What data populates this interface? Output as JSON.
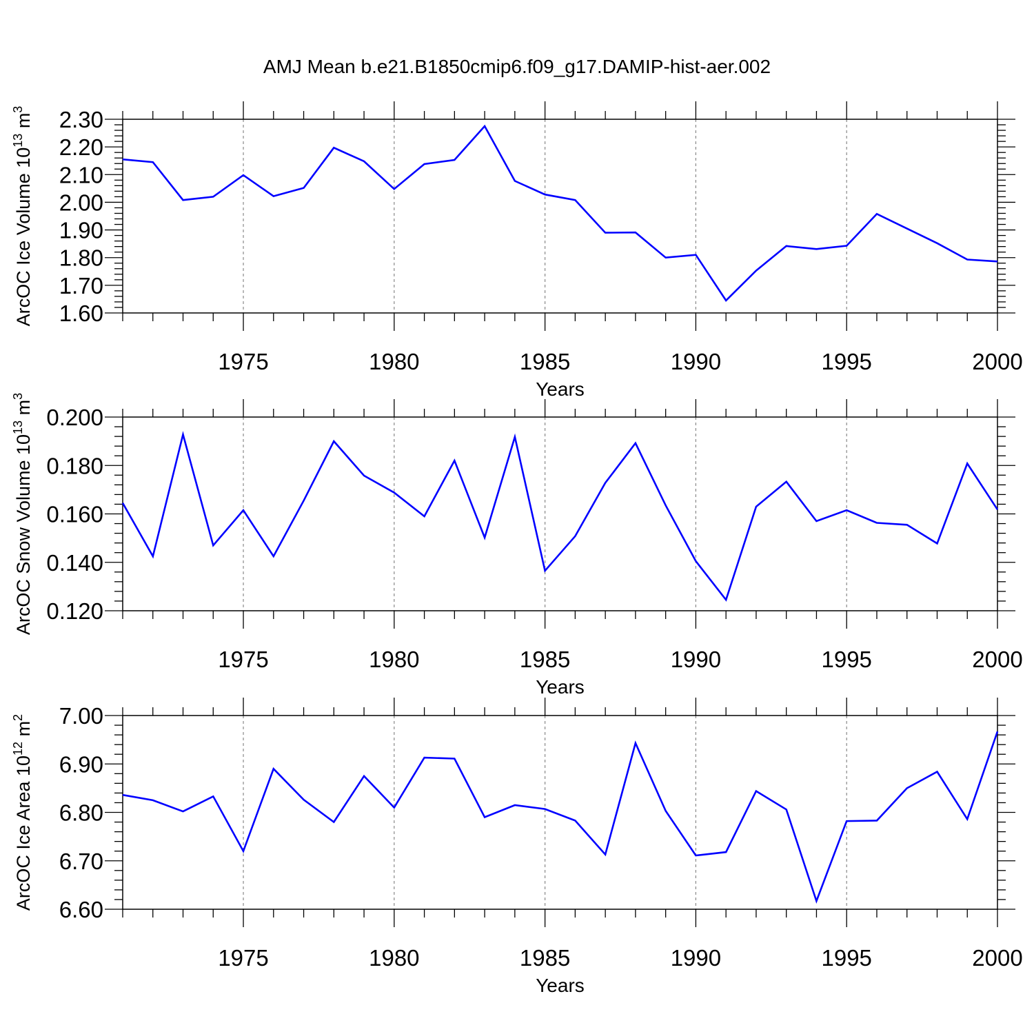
{
  "chart_data": {
    "title": "AMJ Mean b.e21.B1850cmip6.f09_g17.DAMIP-hist-aer.002",
    "x": [
      1971,
      1972,
      1973,
      1974,
      1975,
      1976,
      1977,
      1978,
      1979,
      1980,
      1981,
      1982,
      1983,
      1984,
      1985,
      1986,
      1987,
      1988,
      1989,
      1990,
      1991,
      1992,
      1993,
      1994,
      1995,
      1996,
      1997,
      1998,
      1999,
      2000
    ],
    "xlim": [
      1971,
      2000
    ],
    "xticks": [
      1975,
      1980,
      1985,
      1990,
      1995,
      2000
    ],
    "xtick_labels": [
      "1975",
      "1980",
      "1985",
      "1990",
      "1995",
      "2000"
    ],
    "colors": {
      "line": "#0000ff",
      "grid": "#888888",
      "axis": "#000000"
    },
    "panels": [
      {
        "type": "line",
        "xlabel": "Years",
        "ylabel_text": "ArcOC Ice Volume 10",
        "ylabel_exp": "13",
        "ylabel_unit": " m",
        "ylabel_unit_exp": "3",
        "ylim": [
          1.6,
          2.3
        ],
        "yticks": [
          1.6,
          1.7,
          1.8,
          1.9,
          2.0,
          2.1,
          2.2,
          2.3
        ],
        "ytick_labels": [
          "1.60",
          "1.70",
          "1.80",
          "1.90",
          "2.00",
          "2.10",
          "2.20",
          "2.30"
        ],
        "values": [
          2.155,
          2.145,
          2.008,
          2.02,
          2.098,
          2.022,
          2.052,
          2.197,
          2.148,
          2.048,
          2.138,
          2.153,
          2.275,
          2.077,
          2.028,
          2.008,
          1.89,
          1.891,
          1.8,
          1.81,
          1.645,
          1.753,
          1.842,
          1.831,
          1.843,
          1.958,
          1.905,
          1.852,
          1.793,
          1.786
        ]
      },
      {
        "type": "line",
        "xlabel": "Years",
        "ylabel_text": "ArcOC Snow Volume 10",
        "ylabel_exp": "13",
        "ylabel_unit": " m",
        "ylabel_unit_exp": "3",
        "ylim": [
          0.12,
          0.2
        ],
        "yticks": [
          0.12,
          0.14,
          0.16,
          0.18,
          0.2
        ],
        "ytick_labels": [
          "0.120",
          "0.140",
          "0.160",
          "0.180",
          "0.200"
        ],
        "values": [
          0.1645,
          0.1425,
          0.1928,
          0.147,
          0.1615,
          0.1425,
          0.1655,
          0.19,
          0.1758,
          0.1688,
          0.159,
          0.182,
          0.1502,
          0.1918,
          0.1365,
          0.1508,
          0.1728,
          0.1892,
          0.1635,
          0.1405,
          0.1245,
          0.163,
          0.1733,
          0.157,
          0.1615,
          0.1563,
          0.1555,
          0.1478,
          0.1808,
          0.1618
        ]
      },
      {
        "type": "line",
        "xlabel": "Years",
        "ylabel_text": "ArcOC Ice Area 10",
        "ylabel_exp": "12",
        "ylabel_unit": " m",
        "ylabel_unit_exp": "2",
        "ylim": [
          6.6,
          7.0
        ],
        "yticks": [
          6.6,
          6.7,
          6.8,
          6.9,
          7.0
        ],
        "ytick_labels": [
          "6.60",
          "6.70",
          "6.80",
          "6.90",
          "7.00"
        ],
        "values": [
          6.836,
          6.825,
          6.802,
          6.833,
          6.72,
          6.89,
          6.826,
          6.78,
          6.875,
          6.81,
          6.913,
          6.911,
          6.79,
          6.815,
          6.807,
          6.783,
          6.713,
          6.943,
          6.803,
          6.711,
          6.718,
          6.844,
          6.806,
          6.617,
          6.782,
          6.783,
          6.85,
          6.884,
          6.786,
          6.967
        ]
      }
    ]
  }
}
